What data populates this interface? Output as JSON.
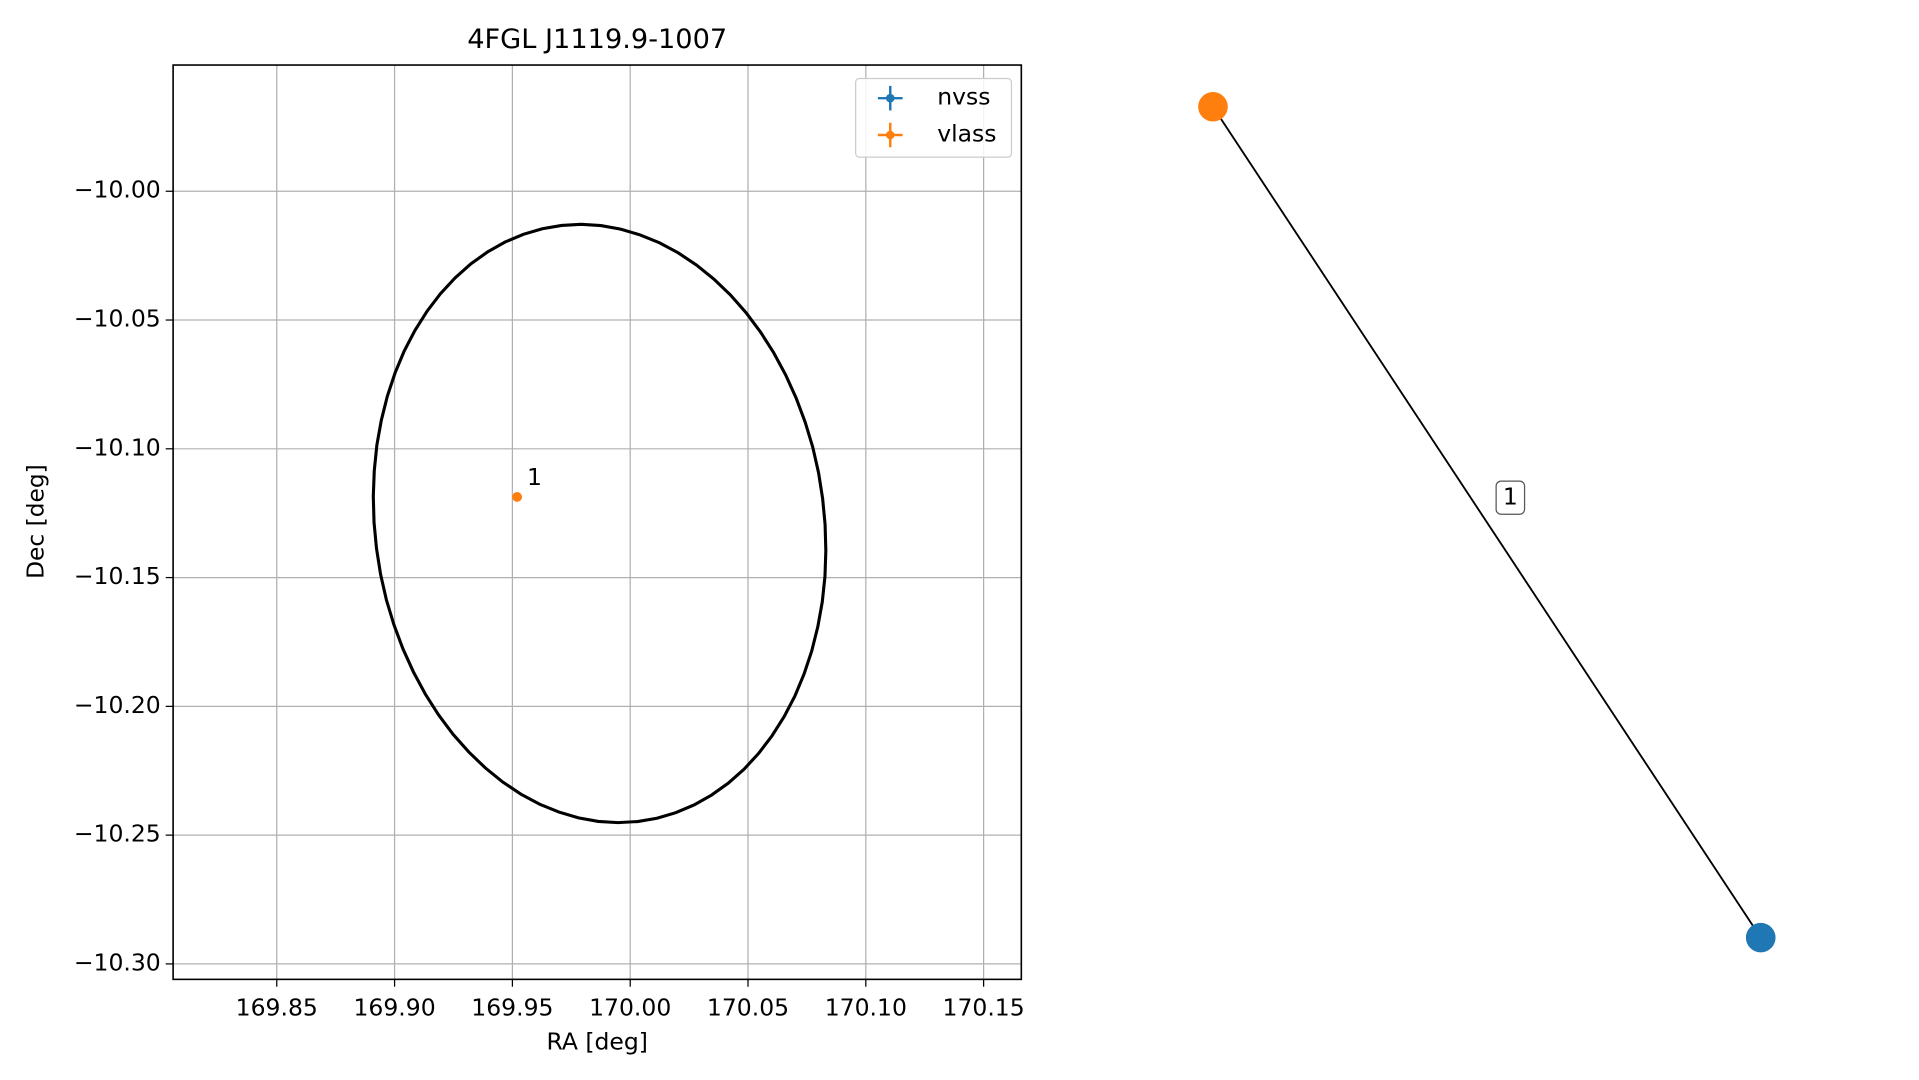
{
  "chart_data": {
    "type": "scatter",
    "title": "4FGL J1119.9-1007",
    "xlabel": "RA [deg]",
    "ylabel": "Dec [deg]",
    "xlim": [
      169.806,
      170.166
    ],
    "ylim": [
      -10.306,
      -9.951
    ],
    "xticks": [
      {
        "value": 169.85,
        "label": "169.85"
      },
      {
        "value": 169.9,
        "label": "169.90"
      },
      {
        "value": 169.95,
        "label": "169.95"
      },
      {
        "value": 170.0,
        "label": "170.00"
      },
      {
        "value": 170.05,
        "label": "170.05"
      },
      {
        "value": 170.1,
        "label": "170.10"
      },
      {
        "value": 170.15,
        "label": "170.15"
      }
    ],
    "yticks": [
      {
        "value": -10.0,
        "label": "−10.00"
      },
      {
        "value": -10.05,
        "label": "−10.05"
      },
      {
        "value": -10.1,
        "label": "−10.10"
      },
      {
        "value": -10.15,
        "label": "−10.15"
      },
      {
        "value": -10.2,
        "label": "−10.20"
      },
      {
        "value": -10.25,
        "label": "−10.25"
      },
      {
        "value": -10.3,
        "label": "−10.30"
      }
    ],
    "grid": true,
    "legend": "upper right",
    "series": [
      {
        "name": "nvss",
        "color": "#1f77b4",
        "x": [],
        "values": [],
        "labels": []
      },
      {
        "name": "vlass",
        "color": "#ff7f0e",
        "x": [
          169.952
        ],
        "values": [
          -10.1187
        ],
        "labels": [
          "1"
        ]
      }
    ],
    "ellipse": {
      "ra": 169.987,
      "dec": -10.129,
      "a": 0.117,
      "b": 0.095,
      "angle": 12
    },
    "graph": {
      "nodes": [
        {
          "color": "#ff7f0e"
        },
        {
          "color": "#1f77b4"
        }
      ],
      "edge_label": "1"
    }
  }
}
